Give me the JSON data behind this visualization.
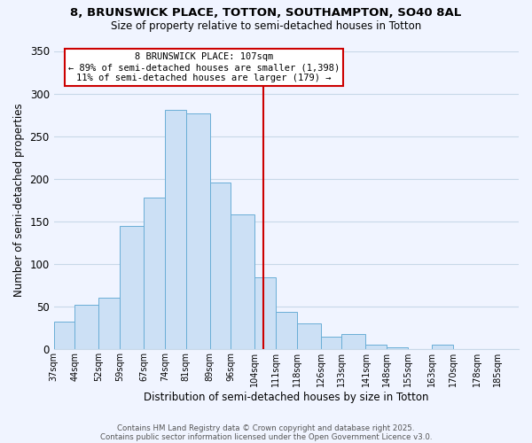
{
  "title_line1": "8, BRUNSWICK PLACE, TOTTON, SOUTHAMPTON, SO40 8AL",
  "title_line2": "Size of property relative to semi-detached houses in Totton",
  "xlabel": "Distribution of semi-detached houses by size in Totton",
  "ylabel": "Number of semi-detached properties",
  "bin_labels": [
    "37sqm",
    "44sqm",
    "52sqm",
    "59sqm",
    "67sqm",
    "74sqm",
    "81sqm",
    "89sqm",
    "96sqm",
    "104sqm",
    "111sqm",
    "118sqm",
    "126sqm",
    "133sqm",
    "141sqm",
    "148sqm",
    "155sqm",
    "163sqm",
    "170sqm",
    "178sqm",
    "185sqm"
  ],
  "bin_values": [
    33,
    52,
    61,
    145,
    178,
    281,
    277,
    196,
    158,
    84,
    44,
    30,
    15,
    18,
    6,
    2,
    0,
    5,
    0,
    0,
    0
  ],
  "bar_color": "#cce0f5",
  "bar_edge_color": "#6aaed6",
  "vline_x": 107,
  "bin_edges": [
    37,
    44,
    52,
    59,
    67,
    74,
    81,
    89,
    96,
    104,
    111,
    118,
    126,
    133,
    141,
    148,
    155,
    163,
    170,
    178,
    185,
    192
  ],
  "annotation_text": "8 BRUNSWICK PLACE: 107sqm\n← 89% of semi-detached houses are smaller (1,398)\n11% of semi-detached houses are larger (179) →",
  "ylim": [
    0,
    350
  ],
  "yticks": [
    0,
    50,
    100,
    150,
    200,
    250,
    300,
    350
  ],
  "grid_color": "#c8d8e8",
  "background_color": "#f0f4ff",
  "footer_line1": "Contains HM Land Registry data © Crown copyright and database right 2025.",
  "footer_line2": "Contains public sector information licensed under the Open Government Licence v3.0.",
  "vline_color": "#cc0000",
  "annotation_box_edge_color": "#cc0000",
  "annotation_box_face_color": "#ffffff"
}
